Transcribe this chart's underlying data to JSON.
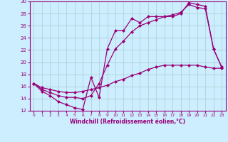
{
  "xlabel": "Windchill (Refroidissement éolien,°C)",
  "bg_color": "#cceeff",
  "line_color": "#990077",
  "grid_color": "#aacccc",
  "xlim": [
    -0.5,
    23.5
  ],
  "ylim": [
    12,
    30
  ],
  "xticks": [
    0,
    1,
    2,
    3,
    4,
    5,
    6,
    7,
    8,
    9,
    10,
    11,
    12,
    13,
    14,
    15,
    16,
    17,
    18,
    19,
    20,
    21,
    22,
    23
  ],
  "yticks": [
    12,
    14,
    16,
    18,
    20,
    22,
    24,
    26,
    28,
    30
  ],
  "line1_x": [
    0,
    1,
    2,
    3,
    4,
    5,
    6,
    7,
    8,
    9,
    10,
    11,
    12,
    13,
    14,
    15,
    16,
    17,
    18,
    19,
    20,
    21,
    22,
    23
  ],
  "line1_y": [
    16.5,
    15.2,
    14.5,
    13.5,
    13.0,
    12.5,
    12.2,
    17.5,
    14.2,
    22.2,
    25.2,
    25.2,
    27.2,
    26.5,
    27.5,
    27.5,
    27.5,
    27.5,
    28.0,
    29.8,
    29.5,
    29.2,
    22.2,
    19.2
  ],
  "line2_x": [
    0,
    1,
    2,
    3,
    4,
    5,
    6,
    7,
    8,
    9,
    10,
    11,
    12,
    13,
    14,
    15,
    16,
    17,
    18,
    19,
    20,
    21,
    22,
    23
  ],
  "line2_y": [
    16.5,
    15.5,
    15.0,
    14.5,
    14.2,
    14.2,
    14.0,
    14.5,
    16.5,
    19.5,
    22.2,
    23.5,
    25.0,
    26.0,
    26.5,
    27.0,
    27.5,
    27.8,
    28.2,
    29.5,
    29.0,
    28.8,
    22.2,
    19.2
  ],
  "line3_x": [
    0,
    1,
    2,
    3,
    4,
    5,
    6,
    7,
    8,
    9,
    10,
    11,
    12,
    13,
    14,
    15,
    16,
    17,
    18,
    19,
    20,
    21,
    22,
    23
  ],
  "line3_y": [
    16.5,
    15.8,
    15.5,
    15.2,
    15.0,
    15.0,
    15.2,
    15.5,
    15.8,
    16.2,
    16.8,
    17.2,
    17.8,
    18.2,
    18.8,
    19.2,
    19.5,
    19.5,
    19.5,
    19.5,
    19.5,
    19.2,
    19.0,
    19.0
  ]
}
